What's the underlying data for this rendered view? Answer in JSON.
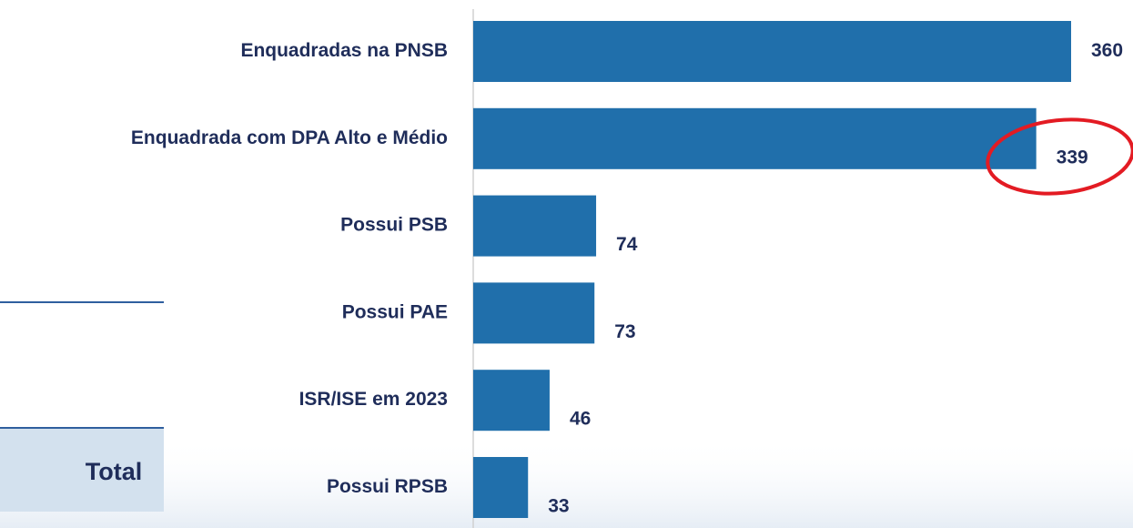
{
  "chart_data": {
    "type": "bar",
    "orientation": "horizontal",
    "categories": [
      "Enquadradas na PNSB",
      "Enquadrada com  DPA Alto e Médio",
      "Possui PSB",
      "Possui PAE",
      "ISR/ISE em 2023",
      "Possui RPSB"
    ],
    "values": [
      360,
      339,
      74,
      73,
      46,
      33
    ],
    "color": "#206fab",
    "xlim": [
      0,
      400
    ]
  },
  "table": {
    "header": "Total"
  }
}
